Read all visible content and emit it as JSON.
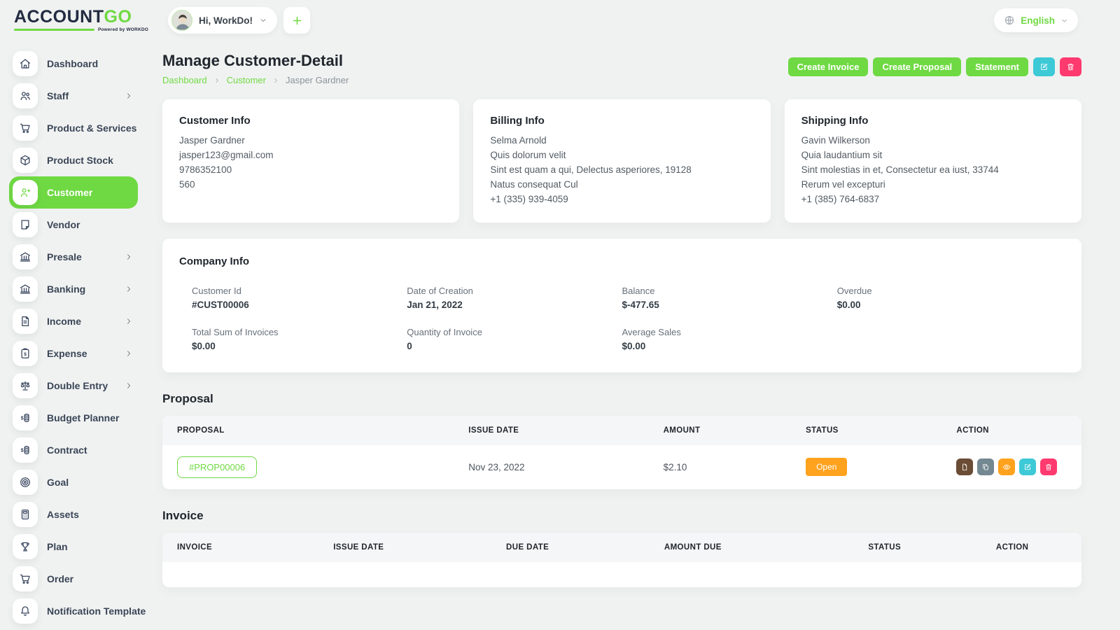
{
  "colors": {
    "primary": "#6fd943",
    "info": "#3ec9d6",
    "danger": "#ff3a6e",
    "warning": "#ffa21d",
    "secondary": "#748892",
    "brown": "#6b4c35"
  },
  "brand": {
    "name_primary": "ACCOUNT",
    "name_secondary": "GO",
    "tagline": "Powered by WORKDO"
  },
  "header": {
    "greeting": "Hi, WorkDo!",
    "language": "English"
  },
  "sidebar": {
    "items": [
      {
        "label": "Dashboard",
        "icon": "home",
        "chevron": false,
        "active": false
      },
      {
        "label": "Staff",
        "icon": "users",
        "chevron": true,
        "active": false
      },
      {
        "label": "Product & Services",
        "icon": "cart",
        "chevron": false,
        "active": false
      },
      {
        "label": "Product Stock",
        "icon": "box",
        "chevron": false,
        "active": false
      },
      {
        "label": "Customer",
        "icon": "user-plus",
        "chevron": false,
        "active": true
      },
      {
        "label": "Vendor",
        "icon": "note",
        "chevron": false,
        "active": false
      },
      {
        "label": "Presale",
        "icon": "bank",
        "chevron": true,
        "active": false
      },
      {
        "label": "Banking",
        "icon": "bank",
        "chevron": true,
        "active": false
      },
      {
        "label": "Income",
        "icon": "file-text",
        "chevron": true,
        "active": false
      },
      {
        "label": "Expense",
        "icon": "clipboard-dollar",
        "chevron": true,
        "active": false
      },
      {
        "label": "Double Entry",
        "icon": "scales",
        "chevron": true,
        "active": false
      },
      {
        "label": "Budget Planner",
        "icon": "coins",
        "chevron": false,
        "active": false
      },
      {
        "label": "Contract",
        "icon": "coins",
        "chevron": false,
        "active": false
      },
      {
        "label": "Goal",
        "icon": "target",
        "chevron": false,
        "active": false
      },
      {
        "label": "Assets",
        "icon": "calculator",
        "chevron": false,
        "active": false
      },
      {
        "label": "Plan",
        "icon": "trophy",
        "chevron": false,
        "active": false
      },
      {
        "label": "Order",
        "icon": "cart",
        "chevron": false,
        "active": false
      },
      {
        "label": "Notification Template",
        "icon": "bell",
        "chevron": false,
        "active": false
      }
    ]
  },
  "page": {
    "title": "Manage Customer-Detail",
    "breadcrumb": [
      "Dashboard",
      "Customer",
      "Jasper Gardner"
    ],
    "action_buttons": [
      "Create Invoice",
      "Create Proposal",
      "Statement"
    ],
    "icon_actions": [
      {
        "icon": "edit",
        "type": "info"
      },
      {
        "icon": "trash",
        "type": "danger"
      }
    ]
  },
  "info_cards": [
    {
      "title": "Customer Info",
      "lines": [
        "Jasper Gardner",
        "jasper123@gmail.com",
        "9786352100",
        "560"
      ]
    },
    {
      "title": "Billing Info",
      "lines": [
        "Selma Arnold",
        "Quis dolorum velit",
        "Sint est quam a qui, Delectus asperiores, 19128",
        "Natus consequat Cul",
        "+1 (335) 939-4059"
      ]
    },
    {
      "title": "Shipping Info",
      "lines": [
        "Gavin Wilkerson",
        "Quia laudantium sit",
        "Sint molestias in et, Consectetur ea iust, 33744",
        "Rerum vel excepturi",
        "+1 (385) 764-6837"
      ]
    }
  ],
  "company": {
    "title": "Company Info",
    "fields": [
      {
        "label": "Customer Id",
        "value": "#CUST00006"
      },
      {
        "label": "Date of Creation",
        "value": "Jan 21, 2022"
      },
      {
        "label": "Balance",
        "value": "$-477.65"
      },
      {
        "label": "Overdue",
        "value": "$0.00"
      },
      {
        "label": "Total Sum of Invoices",
        "value": "$0.00"
      },
      {
        "label": "Quantity of Invoice",
        "value": "0"
      },
      {
        "label": "Average Sales",
        "value": "$0.00"
      }
    ]
  },
  "proposal": {
    "heading": "Proposal",
    "columns": [
      "PROPOSAL",
      "ISSUE DATE",
      "AMOUNT",
      "STATUS",
      "ACTION"
    ],
    "rows": [
      {
        "proposal": "#PROP00006",
        "issue_date": "Nov 23, 2022",
        "amount": "$2.10",
        "status": "Open",
        "status_type": "warning",
        "actions": [
          "file",
          "copy",
          "eye",
          "edit",
          "trash"
        ]
      }
    ]
  },
  "invoice": {
    "heading": "Invoice",
    "columns": [
      "INVOICE",
      "ISSUE DATE",
      "DUE DATE",
      "AMOUNT DUE",
      "STATUS",
      "ACTION"
    ],
    "rows": []
  }
}
